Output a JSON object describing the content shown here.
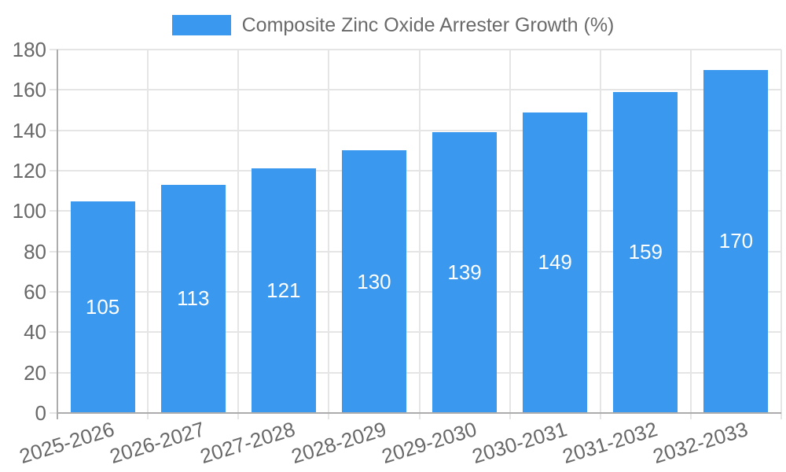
{
  "legend": {
    "label": "Composite Zinc Oxide Arrester Growth (%)"
  },
  "chart_data": {
    "type": "bar",
    "title": "Composite Zinc Oxide Arrester Growth (%)",
    "categories": [
      "2025-2026",
      "2026-2027",
      "2027-2028",
      "2028-2029",
      "2029-2030",
      "2030-2031",
      "2031-2032",
      "2032-2033"
    ],
    "values": [
      105,
      113,
      121,
      130,
      139,
      149,
      159,
      170
    ],
    "xlabel": "",
    "ylabel": "",
    "ylim": [
      0,
      180
    ],
    "yticks": [
      0,
      20,
      40,
      60,
      80,
      100,
      120,
      140,
      160,
      180
    ],
    "grid": true,
    "legend_position": "top",
    "bar_color": "#3A99EE",
    "bar_label_color": "#FFFFFF",
    "grid_color": "#E5E5E5",
    "axis_color": "#ACACAC",
    "tick_text_color": "#686868"
  }
}
